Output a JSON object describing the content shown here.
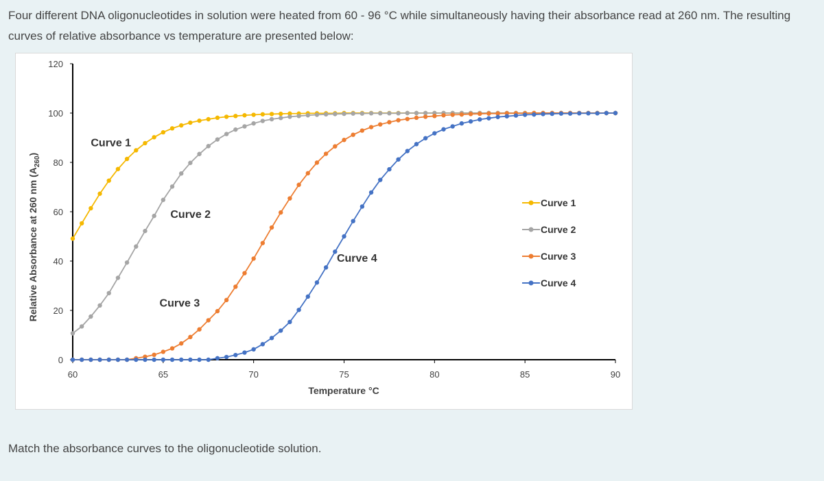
{
  "question": {
    "text": "Four different DNA oligonucleotides in solution were heated from 60 - 96 °C while simultaneously having their absorbance read at 260 nm. The resulting curves of relative absorbance vs temperature are presented below:"
  },
  "footer": {
    "text": "Match the absorbance curves to the oligonucleotide solution."
  },
  "chart_data": {
    "type": "line",
    "xlabel": "Temperature °C",
    "ylabel_main": "Relative Absorbance at 260 nm (A",
    "ylabel_sub": "260",
    "ylabel_end": ")",
    "xlim": [
      60,
      90
    ],
    "ylim": [
      0,
      120
    ],
    "xticks": [
      60,
      65,
      70,
      75,
      80,
      85,
      90
    ],
    "yticks": [
      0,
      20,
      40,
      60,
      80,
      100,
      120
    ],
    "grid": false,
    "legend_position": "right",
    "x": [
      60.0,
      60.5,
      61.0,
      61.5,
      62.0,
      62.5,
      63.0,
      63.5,
      64.0,
      64.5,
      65.0,
      65.5,
      66.0,
      66.5,
      67.0,
      67.5,
      68.0,
      68.5,
      69.0,
      69.5,
      70.0,
      70.5,
      71.0,
      71.5,
      72.0,
      72.5,
      73.0,
      73.5,
      74.0,
      74.5,
      75.0,
      75.5,
      76.0,
      76.5,
      77.0,
      77.5,
      78.0,
      78.5,
      79.0,
      79.5,
      80.0,
      80.5,
      81.0,
      81.5,
      82.0,
      82.5,
      83.0,
      83.5,
      84.0,
      84.5,
      85.0,
      85.5,
      86.0,
      86.5,
      87.0,
      87.5,
      88.0,
      88.5,
      89.0,
      89.5,
      90.0
    ],
    "series": [
      {
        "name": "Curve 1",
        "color": "#f5b800",
        "values": [
          49.1,
          55.3,
          61.4,
          67.3,
          72.6,
          77.3,
          81.4,
          84.9,
          87.8,
          90.2,
          92.2,
          93.8,
          95.0,
          96.1,
          96.9,
          97.5,
          98.1,
          98.5,
          98.8,
          99.1,
          99.3,
          99.5,
          99.6,
          99.7,
          99.8,
          99.8,
          99.9,
          99.9,
          99.9,
          99.9,
          100.0,
          100.0,
          100.0,
          100.0,
          100.0,
          100.0,
          100.0,
          100.0,
          100.0,
          100.0,
          100.0,
          100.0,
          100.0,
          100.0,
          100.0,
          100.0,
          100.0,
          100.0,
          100.0,
          100.0,
          100.0,
          100.0,
          100.0,
          100.0,
          100.0,
          100.0,
          100.0,
          100.0,
          100.0,
          100.0,
          100.0
        ]
      },
      {
        "name": "Curve 2",
        "color": "#a5a5a5",
        "values": [
          10.7,
          13.5,
          17.5,
          22.0,
          27.0,
          33.2,
          39.4,
          45.9,
          52.2,
          58.3,
          64.8,
          70.2,
          75.5,
          79.8,
          83.4,
          86.6,
          89.3,
          91.5,
          93.3,
          94.6,
          95.8,
          96.8,
          97.5,
          98.0,
          98.5,
          98.8,
          99.1,
          99.3,
          99.5,
          99.6,
          99.7,
          99.8,
          99.8,
          99.9,
          99.9,
          99.9,
          99.9,
          100.0,
          100.0,
          100.0,
          100.0,
          100.0,
          100.0,
          100.0,
          100.0,
          100.0,
          100.0,
          100.0,
          100.0,
          100.0,
          100.0,
          100.0,
          100.0,
          100.0,
          100.0,
          100.0,
          100.0,
          100.0,
          100.0,
          100.0,
          100.0
        ]
      },
      {
        "name": "Curve 3",
        "color": "#ed7d31",
        "values": [
          0.0,
          0.0,
          0.0,
          0.0,
          0.0,
          0.0,
          0.0,
          0.6,
          1.2,
          2.0,
          3.2,
          4.6,
          6.6,
          9.2,
          12.3,
          16.0,
          19.7,
          24.2,
          29.6,
          35.1,
          41.0,
          47.3,
          53.6,
          59.7,
          65.4,
          70.9,
          75.6,
          79.9,
          83.5,
          86.5,
          89.1,
          91.2,
          92.9,
          94.3,
          95.4,
          96.3,
          97.1,
          97.6,
          98.1,
          98.5,
          98.8,
          99.1,
          99.3,
          99.4,
          99.6,
          99.7,
          99.8,
          99.8,
          99.9,
          99.9,
          99.9,
          100.0,
          100.0,
          100.0,
          100.0,
          100.0,
          100.0,
          100.0,
          100.0,
          100.0,
          100.0
        ]
      },
      {
        "name": "Curve 4",
        "color": "#4472c4",
        "values": [
          0.0,
          0.0,
          0.0,
          0.0,
          0.0,
          0.0,
          0.0,
          0.0,
          0.0,
          0.0,
          0.0,
          0.0,
          0.0,
          0.0,
          0.0,
          0.0,
          0.6,
          1.1,
          1.9,
          2.9,
          4.2,
          6.3,
          8.8,
          11.8,
          15.3,
          20.2,
          25.6,
          31.3,
          37.4,
          43.8,
          50.0,
          56.2,
          62.1,
          67.8,
          72.9,
          77.2,
          81.2,
          84.6,
          87.4,
          89.8,
          91.8,
          93.4,
          94.6,
          95.8,
          96.6,
          97.4,
          97.9,
          98.4,
          98.7,
          99.0,
          99.3,
          99.4,
          99.6,
          99.7,
          99.8,
          99.8,
          99.9,
          99.9,
          99.9,
          100.0,
          100.0
        ]
      }
    ],
    "annotations": [
      {
        "text": "Curve 1",
        "x": 61.0,
        "y": 86.5
      },
      {
        "text": "Curve 2",
        "x": 65.4,
        "y": 57.5
      },
      {
        "text": "Curve 3",
        "x": 64.8,
        "y": 21.5
      },
      {
        "text": "Curve 4",
        "x": 74.6,
        "y": 39.7
      }
    ]
  }
}
